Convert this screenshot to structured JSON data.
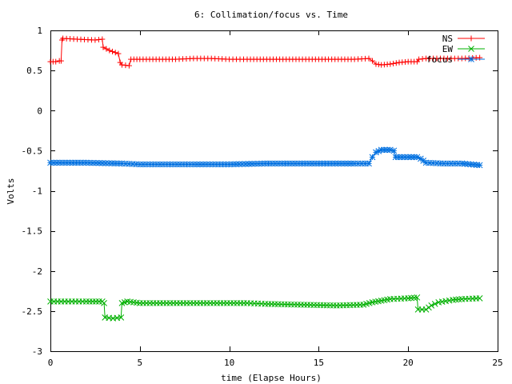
{
  "chart_data": {
    "type": "line",
    "title": "6: Collimation/focus vs. Time",
    "xlabel": "time (Elapse Hours)",
    "ylabel": "Volts",
    "xlim": [
      0,
      25
    ],
    "ylim": [
      -3,
      1
    ],
    "xticks": [
      0,
      5,
      10,
      15,
      20,
      25
    ],
    "xtick_labels": [
      "0",
      "5",
      "10",
      "15",
      "20",
      "25"
    ],
    "yticks": [
      1,
      0.5,
      0,
      -0.5,
      -1,
      -1.5,
      -2,
      -2.5,
      -3
    ],
    "ytick_labels": [
      "1",
      "0.5",
      "0",
      "-0.5",
      "-1",
      "-1.5",
      "-2",
      "-2.5",
      "-3"
    ],
    "grid": false,
    "legend_position": "top-right",
    "series": [
      {
        "name": "NS",
        "color": "#ff0000",
        "marker": "plus",
        "points": [
          [
            0,
            0.61
          ],
          [
            0.3,
            0.61
          ],
          [
            0.5,
            0.62
          ],
          [
            0.6,
            0.62
          ],
          [
            0.65,
            0.88
          ],
          [
            0.7,
            0.9
          ],
          [
            1.5,
            0.89
          ],
          [
            2.5,
            0.88
          ],
          [
            2.9,
            0.89
          ],
          [
            2.95,
            0.79
          ],
          [
            3.3,
            0.75
          ],
          [
            3.8,
            0.71
          ],
          [
            3.9,
            0.6
          ],
          [
            4,
            0.57
          ],
          [
            4.4,
            0.56
          ],
          [
            4.5,
            0.64
          ],
          [
            5,
            0.64
          ],
          [
            7,
            0.64
          ],
          [
            8,
            0.65
          ],
          [
            9,
            0.65
          ],
          [
            10,
            0.64
          ],
          [
            11,
            0.64
          ],
          [
            13,
            0.64
          ],
          [
            15,
            0.64
          ],
          [
            17,
            0.64
          ],
          [
            17.8,
            0.65
          ],
          [
            18,
            0.62
          ],
          [
            18.2,
            0.58
          ],
          [
            18.5,
            0.57
          ],
          [
            19,
            0.58
          ],
          [
            19.5,
            0.6
          ],
          [
            20,
            0.61
          ],
          [
            20.5,
            0.61
          ],
          [
            20.6,
            0.64
          ],
          [
            21,
            0.65
          ],
          [
            22,
            0.65
          ],
          [
            23,
            0.65
          ],
          [
            24,
            0.66
          ]
        ]
      },
      {
        "name": "EW",
        "color": "#00b000",
        "marker": "cross",
        "points": [
          [
            0,
            -2.38
          ],
          [
            1,
            -2.38
          ],
          [
            2,
            -2.38
          ],
          [
            2.9,
            -2.38
          ],
          [
            3,
            -2.4
          ],
          [
            3.05,
            -2.58
          ],
          [
            3.5,
            -2.59
          ],
          [
            3.95,
            -2.58
          ],
          [
            4,
            -2.4
          ],
          [
            4.3,
            -2.38
          ],
          [
            5,
            -2.4
          ],
          [
            8,
            -2.4
          ],
          [
            11,
            -2.4
          ],
          [
            12,
            -2.41
          ],
          [
            14,
            -2.42
          ],
          [
            16,
            -2.43
          ],
          [
            17.5,
            -2.42
          ],
          [
            18,
            -2.39
          ],
          [
            18.5,
            -2.37
          ],
          [
            19,
            -2.35
          ],
          [
            20,
            -2.34
          ],
          [
            20.5,
            -2.33
          ],
          [
            20.55,
            -2.48
          ],
          [
            21,
            -2.48
          ],
          [
            21.3,
            -2.43
          ],
          [
            21.7,
            -2.39
          ],
          [
            22.5,
            -2.36
          ],
          [
            23,
            -2.35
          ],
          [
            24,
            -2.34
          ]
        ]
      },
      {
        "name": "focus",
        "color": "#0070e0",
        "marker": "star",
        "points": [
          [
            0,
            -0.65
          ],
          [
            2,
            -0.65
          ],
          [
            4,
            -0.66
          ],
          [
            5,
            -0.67
          ],
          [
            8,
            -0.67
          ],
          [
            10,
            -0.67
          ],
          [
            12,
            -0.66
          ],
          [
            15,
            -0.66
          ],
          [
            17,
            -0.66
          ],
          [
            17.8,
            -0.66
          ],
          [
            18,
            -0.58
          ],
          [
            18.2,
            -0.52
          ],
          [
            18.5,
            -0.49
          ],
          [
            19,
            -0.49
          ],
          [
            19.2,
            -0.5
          ],
          [
            19.3,
            -0.58
          ],
          [
            20,
            -0.58
          ],
          [
            20.5,
            -0.58
          ],
          [
            20.7,
            -0.6
          ],
          [
            21,
            -0.65
          ],
          [
            22,
            -0.66
          ],
          [
            23,
            -0.66
          ],
          [
            23.5,
            -0.67
          ],
          [
            24,
            -0.68
          ]
        ]
      }
    ]
  }
}
